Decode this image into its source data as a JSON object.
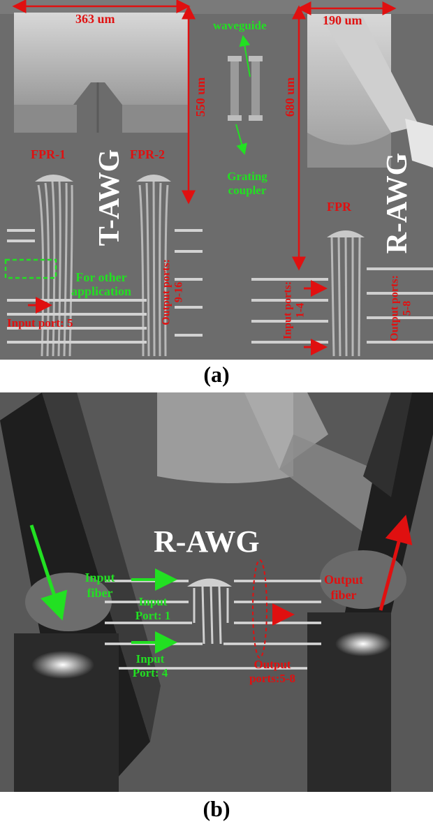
{
  "panel_a": {
    "caption": "(a)",
    "dim_363": "363 um",
    "dim_190": "190 um",
    "dim_550": "550 um",
    "dim_680": "680 um",
    "waveguide": "waveguide",
    "grating_coupler": "Grating coupler",
    "fpr1": "FPR-1",
    "fpr2": "FPR-2",
    "fpr": "FPR",
    "t_awg": "T-AWG",
    "r_awg": "R-AWG",
    "for_other_application": "For other application",
    "input_port_5": "Input port: 5",
    "output_ports_9_16": "Output ports: 9-16",
    "input_ports_1_4": "Input ports: 1-4",
    "output_ports_5_8": "Output ports: 5-8"
  },
  "panel_b": {
    "caption": "(b)",
    "r_awg": "R-AWG",
    "input_fiber": "Input fiber",
    "output_fiber": "Output fiber",
    "input_port_1": "Input Port: 1",
    "input_port_4": "Input Port: 4",
    "output_ports_5_8": "Output ports:5-8"
  },
  "colors": {
    "red": "#e01010",
    "green": "#22e022",
    "white": "#ffffff"
  }
}
